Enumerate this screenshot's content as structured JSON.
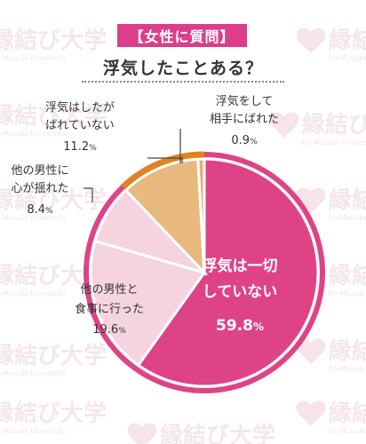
{
  "header": {
    "tag": "【女性に質問】",
    "question": "浮気したことある？"
  },
  "watermark": {
    "logo_text": "縁結び大学",
    "sub_text": "En-Musubi University"
  },
  "colors": {
    "brand_pink": "#db3f8a",
    "slice_main": "#de4387",
    "slice_light": "#f5d3df",
    "slice_tan": "#e7b97f",
    "slice_small": "#e3b079",
    "slice_line": "#dc8521",
    "label_text": "#333333"
  },
  "chart_data": {
    "type": "pie",
    "unit": "%",
    "slices": [
      {
        "label_lines": [
          "浮気は一切",
          "していない"
        ],
        "value": 59.8,
        "color": "#de4387",
        "outline": "#de4387",
        "label_color": "#ffffff"
      },
      {
        "label_lines": [
          "他の男性と",
          "食事に行った"
        ],
        "value": 19.6,
        "color": "#f5d3df",
        "outline": "#de4387",
        "label_color": "#333333"
      },
      {
        "label_lines": [
          "他の男性に",
          "心が揺れた"
        ],
        "value": 8.4,
        "color": "#f5d3df",
        "outline": "#de4387",
        "label_color": "#333333"
      },
      {
        "label_lines": [
          "浮気はしたが",
          "ばれていない"
        ],
        "value": 11.2,
        "color": "#e7b97f",
        "outline": "#dc8521",
        "label_color": "#333333"
      },
      {
        "label_lines": [
          "浮気をして",
          "相手にばれた"
        ],
        "value": 0.9,
        "color": "#e3b079",
        "outline": "#dc8521",
        "label_color": "#333333"
      }
    ]
  }
}
